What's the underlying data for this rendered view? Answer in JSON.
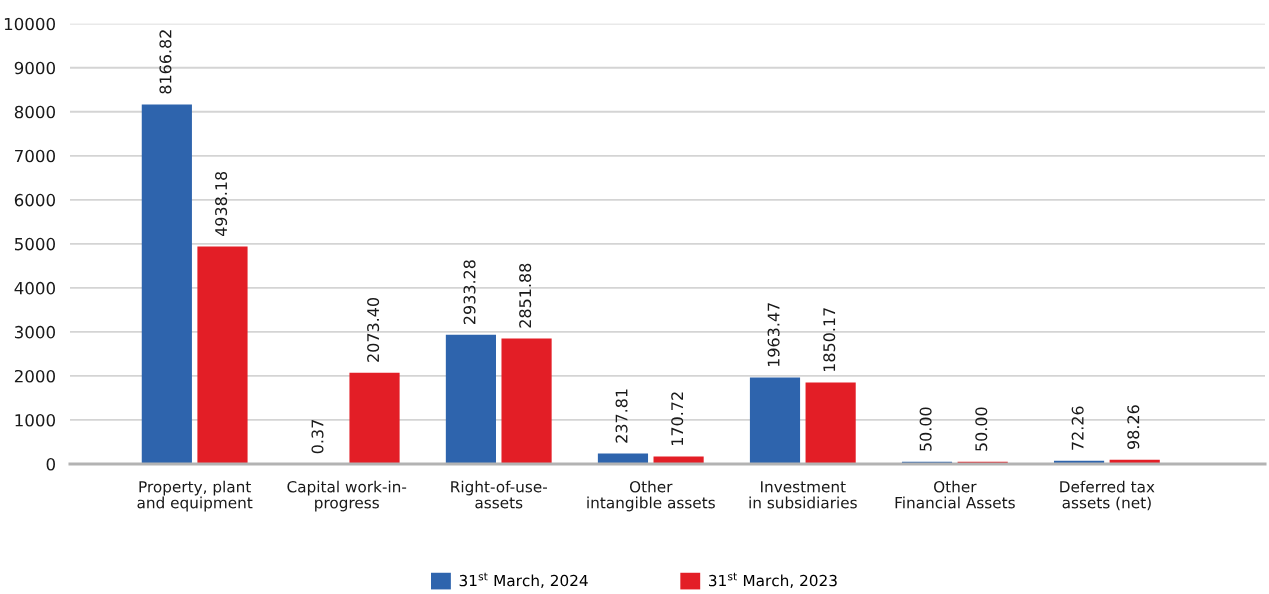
{
  "chart_data": {
    "type": "bar",
    "categories": [
      "Property, plant\nand equipment",
      "Capital work-in-\nprogress",
      "Right-of-use-\nassets",
      "Other\nintangible assets",
      "Investment\nin subsidiaries",
      "Other\nFinancial Assets",
      "Deferred tax\nassets (net)"
    ],
    "series": [
      {
        "name": "31$^{st}$ March, 2024",
        "color": "#2e64ad",
        "values": [
          8166.82,
          0.37,
          2933.28,
          237.81,
          1963.47,
          50.0,
          72.26
        ],
        "value_labels": [
          "8166.82",
          "0.37",
          "2933.28",
          "237.81",
          "1963.47",
          "50.00",
          "72.26"
        ]
      },
      {
        "name": "31$^{st}$ March, 2023",
        "color": "#e31e26",
        "values": [
          4938.18,
          2073.4,
          2851.88,
          170.72,
          1850.17,
          50.0,
          98.26
        ],
        "value_labels": [
          "4938.18",
          "2073.40",
          "2851.88",
          "170.72",
          "1850.17",
          "50.00",
          "98.26"
        ]
      }
    ],
    "ylim": [
      0,
      10000
    ],
    "yticks": [
      0,
      1000,
      2000,
      3000,
      4000,
      5000,
      6000,
      7000,
      8000,
      9000,
      10000
    ],
    "grid": "y",
    "legend": "bottom"
  }
}
